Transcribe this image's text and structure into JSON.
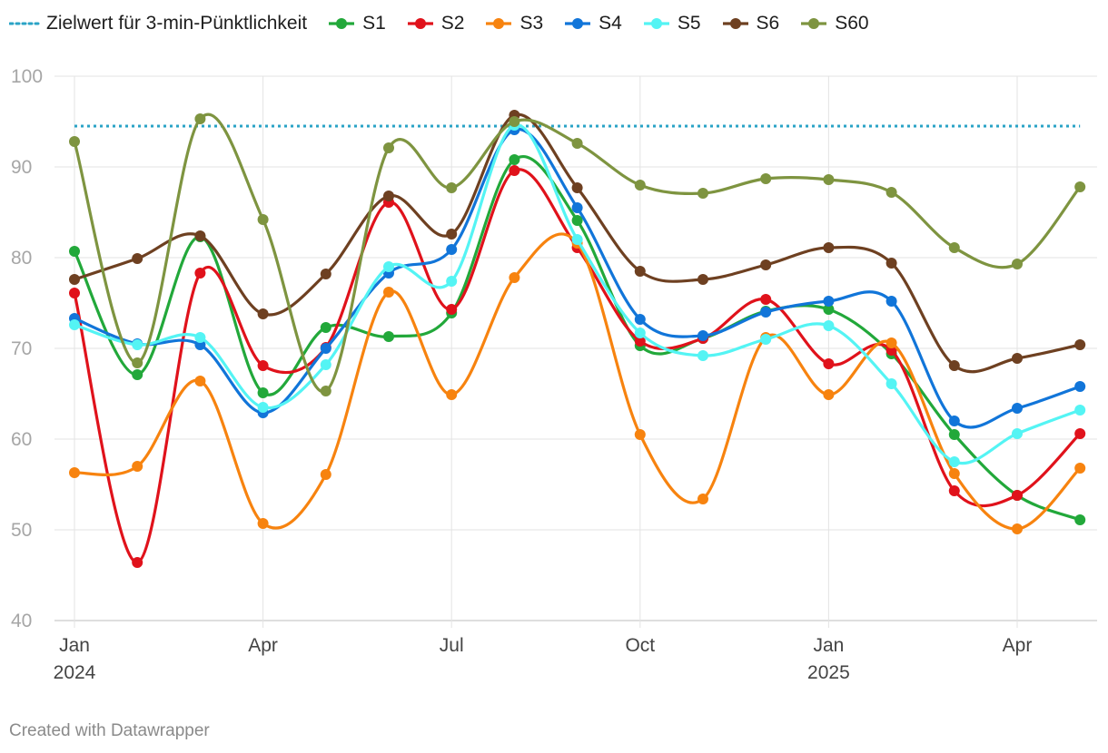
{
  "legend": {
    "target_label": "Zielwert für 3-min-Pünktlichkeit",
    "target_color": "#2aa3c6"
  },
  "footer": {
    "credit": "Created with Datawrapper"
  },
  "chart_data": {
    "type": "line",
    "x": [
      "2024-01",
      "2024-02",
      "2024-03",
      "2024-04",
      "2024-05",
      "2024-06",
      "2024-07",
      "2024-08",
      "2024-09",
      "2024-10",
      "2024-11",
      "2024-12",
      "2025-01",
      "2025-02",
      "2025-03",
      "2025-04",
      "2025-05"
    ],
    "x_ticks": [
      {
        "label": "Jan",
        "year": "2024",
        "index": 0
      },
      {
        "label": "Apr",
        "year": "",
        "index": 3
      },
      {
        "label": "Jul",
        "year": "",
        "index": 6
      },
      {
        "label": "Oct",
        "year": "",
        "index": 9
      },
      {
        "label": "Jan",
        "year": "2025",
        "index": 12
      },
      {
        "label": "Apr",
        "year": "",
        "index": 15
      }
    ],
    "y_ticks": [
      40,
      50,
      60,
      70,
      80,
      90,
      100
    ],
    "ylim": [
      40,
      100
    ],
    "grid": true,
    "legend_position": "top-left",
    "target_value": 94.5,
    "series": [
      {
        "name": "S1",
        "color": "#22a83a",
        "values": [
          80.7,
          67.1,
          82.3,
          65.1,
          72.3,
          71.3,
          73.9,
          90.8,
          84.1,
          70.3,
          71.1,
          74.1,
          74.3,
          69.4,
          60.5,
          53.8,
          51.1
        ]
      },
      {
        "name": "S2",
        "color": "#e0121b",
        "values": [
          76.1,
          46.4,
          78.3,
          68.1,
          70.1,
          86.1,
          74.3,
          89.6,
          81.1,
          70.8,
          71.1,
          75.4,
          68.3,
          69.8,
          54.3,
          53.8,
          60.6
        ]
      },
      {
        "name": "S3",
        "color": "#f7830f",
        "values": [
          56.3,
          57.0,
          66.4,
          50.7,
          56.1,
          76.2,
          64.9,
          77.8,
          81.6,
          60.5,
          53.4,
          71.2,
          64.9,
          70.6,
          56.2,
          50.1,
          56.8
        ]
      },
      {
        "name": "S4",
        "color": "#1175d9",
        "values": [
          73.3,
          70.5,
          70.4,
          62.9,
          70.0,
          78.3,
          80.9,
          94.1,
          85.5,
          73.2,
          71.4,
          74.0,
          75.2,
          75.2,
          62.0,
          63.4,
          65.8
        ]
      },
      {
        "name": "S5",
        "color": "#54f4f4",
        "values": [
          72.6,
          70.4,
          71.2,
          63.5,
          68.2,
          79.0,
          77.4,
          94.6,
          82.0,
          71.7,
          69.2,
          71.0,
          72.5,
          66.1,
          57.5,
          60.6,
          63.2
        ]
      },
      {
        "name": "S6",
        "color": "#6e4021",
        "values": [
          77.6,
          79.9,
          82.4,
          73.8,
          78.2,
          86.8,
          82.6,
          95.7,
          87.7,
          78.5,
          77.6,
          79.2,
          81.1,
          79.4,
          68.1,
          68.9,
          70.4
        ]
      },
      {
        "name": "S60",
        "color": "#7e9440",
        "values": [
          92.8,
          68.4,
          95.3,
          84.2,
          65.3,
          92.1,
          87.7,
          95.0,
          92.6,
          88.0,
          87.1,
          88.7,
          88.6,
          87.2,
          81.1,
          79.3,
          87.8
        ]
      }
    ]
  }
}
